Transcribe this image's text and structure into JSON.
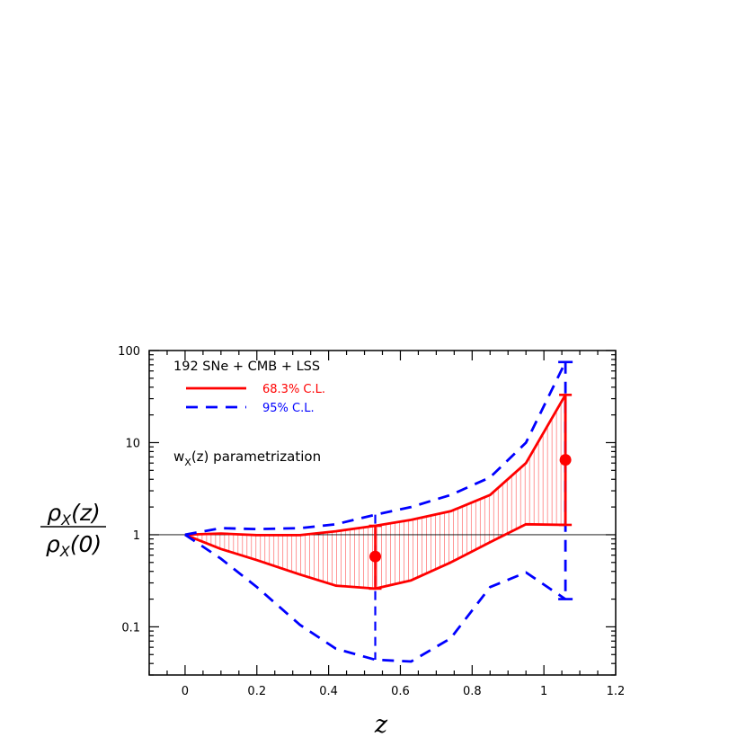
{
  "chart_data": {
    "type": "line",
    "xlabel": "z",
    "ylabel": {
      "numerator": "ρX(z)",
      "denominator": "ρX(0)"
    },
    "xlim": [
      -0.1,
      1.2
    ],
    "ylim": [
      0.03,
      100
    ],
    "yscale": "log",
    "x_ticks": [
      "0",
      "0.2",
      "0.4",
      "0.6",
      "0.8",
      "1",
      "1.2"
    ],
    "y_ticks": [
      "0.1",
      "1",
      "10",
      "100"
    ],
    "annotation_dataset": "192 SNe + CMB + LSS",
    "annotation_parametrization": "wX(z) parametrization",
    "legend_position": "top-left",
    "colors": {
      "red": "#ff0000",
      "blue": "#0000ff",
      "hatch": "#ff6b6b"
    },
    "series": [
      {
        "name": "68.3% C.L.",
        "style": "solid",
        "upper": {
          "x": [
            0,
            0.1,
            0.2,
            0.32,
            0.42,
            0.53,
            0.63,
            0.74,
            0.85,
            0.95,
            1.06
          ],
          "y": [
            1.0,
            1.03,
            0.99,
            0.99,
            1.09,
            1.25,
            1.45,
            1.8,
            2.7,
            6.0,
            33
          ]
        },
        "lower": {
          "x": [
            0,
            0.1,
            0.2,
            0.32,
            0.42,
            0.53,
            0.63,
            0.74,
            0.85,
            0.95,
            1.06
          ],
          "y": [
            1.0,
            0.7,
            0.53,
            0.37,
            0.28,
            0.26,
            0.32,
            0.5,
            0.83,
            1.3,
            1.28
          ]
        }
      },
      {
        "name": "95% C.L.",
        "style": "dashed",
        "upper": {
          "x": [
            0,
            0.1,
            0.2,
            0.32,
            0.42,
            0.53,
            0.63,
            0.74,
            0.85,
            0.95,
            1.06
          ],
          "y": [
            1.0,
            1.18,
            1.15,
            1.18,
            1.3,
            1.65,
            2.0,
            2.7,
            4.2,
            10,
            75
          ]
        },
        "lower": {
          "x": [
            0,
            0.1,
            0.2,
            0.32,
            0.42,
            0.53,
            0.63,
            0.74,
            0.85,
            0.95,
            1.06
          ],
          "y": [
            1.0,
            0.55,
            0.27,
            0.105,
            0.058,
            0.044,
            0.042,
            0.075,
            0.27,
            0.39,
            0.2
          ]
        }
      }
    ],
    "points": [
      {
        "x": 0.53,
        "y": 0.58,
        "err_low": 0.26,
        "err_high": 1.25
      },
      {
        "x": 1.06,
        "y": 6.5,
        "err_low": 1.28,
        "err_high": 33
      }
    ],
    "reference_line_y": 1
  }
}
